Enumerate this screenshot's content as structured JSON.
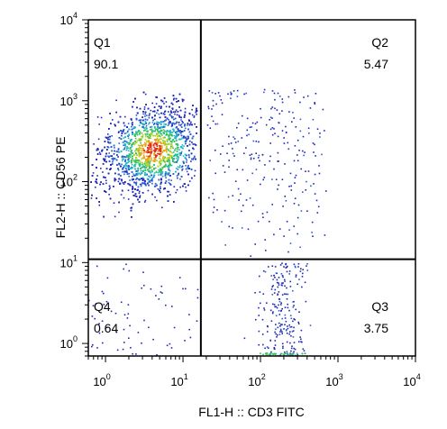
{
  "chart_data": {
    "type": "scatter",
    "subtype": "flow-cytometry-density-dot-plot",
    "title": "",
    "xlabel": "FL1-H :: CD3 FITC",
    "ylabel": "FL2-H :: CD56 PE",
    "x_scale": "log",
    "y_scale": "log",
    "xlim": [
      0.6,
      10000
    ],
    "ylim": [
      0.7,
      10000
    ],
    "x_ticks": [
      {
        "base": "10",
        "exp": "0",
        "value": 1
      },
      {
        "base": "10",
        "exp": "1",
        "value": 10
      },
      {
        "base": "10",
        "exp": "2",
        "value": 100
      },
      {
        "base": "10",
        "exp": "3",
        "value": 1000
      },
      {
        "base": "10",
        "exp": "4",
        "value": 10000
      }
    ],
    "y_ticks": [
      {
        "base": "10",
        "exp": "0",
        "value": 1
      },
      {
        "base": "10",
        "exp": "1",
        "value": 10
      },
      {
        "base": "10",
        "exp": "2",
        "value": 100
      },
      {
        "base": "10",
        "exp": "3",
        "value": 1000
      },
      {
        "base": "10",
        "exp": "4",
        "value": 10000
      }
    ],
    "gates": {
      "x_threshold": 17,
      "y_threshold": 11
    },
    "quadrants": [
      {
        "name": "Q1",
        "percent": "90.1",
        "position": "top-left"
      },
      {
        "name": "Q2",
        "percent": "5.47",
        "position": "top-right"
      },
      {
        "name": "Q3",
        "percent": "3.75",
        "position": "bottom-right"
      },
      {
        "name": "Q4",
        "percent": "0.64",
        "position": "bottom-left"
      }
    ],
    "populations": [
      {
        "region": "Q1",
        "shape": "dense cluster",
        "x_center": 4,
        "y_center": 250,
        "x_range": [
          0.6,
          16
        ],
        "y_range": [
          20,
          1300
        ],
        "fraction": 0.901
      },
      {
        "region": "Q2",
        "shape": "sparse",
        "x_range": [
          20,
          700
        ],
        "y_range": [
          11,
          1400
        ],
        "fraction": 0.0547
      },
      {
        "region": "Q3",
        "shape": "sparse column",
        "x_center": 200,
        "x_range": [
          25,
          600
        ],
        "y_range": [
          0.7,
          10
        ],
        "fraction": 0.0375
      },
      {
        "region": "Q4",
        "shape": "sparse",
        "x_range": [
          0.6,
          16
        ],
        "y_range": [
          0.7,
          10
        ],
        "fraction": 0.0064
      }
    ],
    "density_colors": [
      "#1f26b8",
      "#2a5fd0",
      "#22b8c8",
      "#39c15a",
      "#b8d126",
      "#f0a020",
      "#e0301e"
    ],
    "grid": false,
    "legend": "none"
  }
}
